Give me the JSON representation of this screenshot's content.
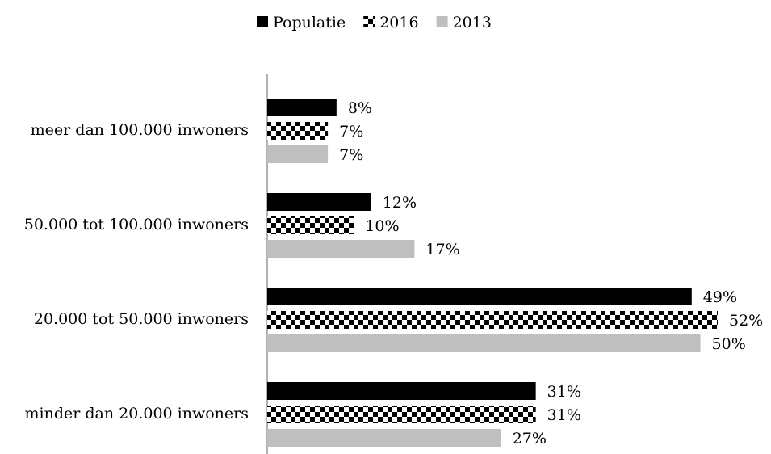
{
  "chart_data": {
    "type": "hbar",
    "categories": [
      "meer dan 100.000 inwoners",
      "50.000 tot 100.000 inwoners",
      "20.000 tot 50.000 inwoners",
      "minder dan 20.000 inwoners"
    ],
    "series": [
      {
        "name": "Populatie",
        "color": "#000000",
        "values": [
          8,
          12,
          49,
          31
        ],
        "value_labels": [
          "8%",
          "12%",
          "49%",
          "31%"
        ]
      },
      {
        "name": "2016",
        "color": "#000000",
        "pattern": "checkerboard",
        "values": [
          7,
          10,
          52,
          31
        ],
        "value_labels": [
          "7%",
          "10%",
          "52%",
          "31%"
        ]
      },
      {
        "name": "2013",
        "color": "#bfbfbf",
        "values": [
          7,
          17,
          50,
          27
        ],
        "value_labels": [
          "7%",
          "17%",
          "50%",
          "27%"
        ]
      }
    ],
    "legend": "top"
  }
}
